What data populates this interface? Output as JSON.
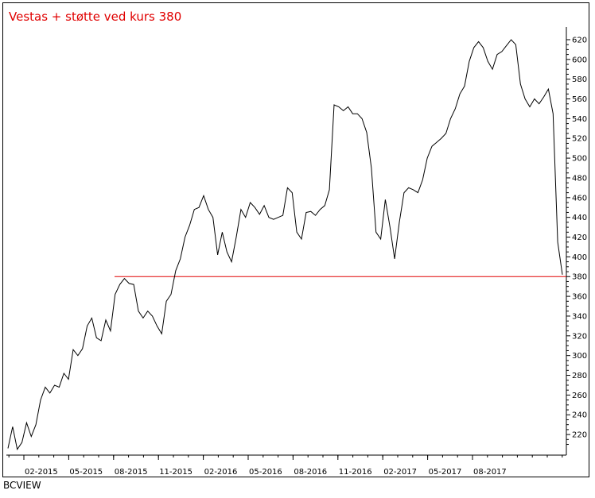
{
  "chart_data": {
    "type": "line",
    "title": "Vestas + støtte ved kurs 380",
    "xlabel": "",
    "ylabel": "",
    "ylim": [
      200,
      628
    ],
    "yticks": [
      220,
      240,
      260,
      280,
      300,
      320,
      340,
      360,
      380,
      400,
      420,
      440,
      460,
      480,
      500,
      520,
      540,
      560,
      580,
      600,
      620
    ],
    "xticks": [
      "02-2015",
      "05-2015",
      "08-2015",
      "11-2015",
      "02-2016",
      "05-2016",
      "08-2016",
      "11-2016",
      "02-2017",
      "05-2017",
      "08-2017"
    ],
    "grid": false,
    "support_level": 380,
    "series": [
      {
        "x_month_offset": [
          0.0,
          0.3,
          0.6,
          0.9,
          1.2,
          1.5,
          1.8,
          2.1,
          2.4,
          2.7,
          3.0,
          3.3,
          3.6,
          3.9,
          4.2,
          4.5,
          4.8,
          5.1,
          5.4,
          5.7,
          6.0,
          6.3,
          6.6,
          6.9,
          7.2,
          7.5,
          7.8,
          8.1,
          8.4,
          8.7,
          9.0,
          9.3,
          9.6,
          9.9,
          10.2,
          10.5,
          10.8,
          11.1,
          11.4,
          11.7,
          12.0,
          12.3,
          12.6,
          12.9,
          13.2,
          13.5,
          13.8,
          14.1,
          14.4,
          14.7,
          15.0,
          15.3,
          15.6,
          15.9,
          16.2,
          16.5,
          16.8,
          17.1,
          17.4,
          17.7,
          18.0,
          18.3,
          18.6,
          18.9,
          19.2,
          19.5,
          19.8,
          20.1,
          20.4,
          20.7,
          21.0,
          21.3,
          21.6,
          21.9,
          22.2,
          22.5,
          22.8,
          23.1,
          23.4,
          23.7,
          24.0,
          24.3,
          24.6,
          24.9,
          25.2,
          25.5,
          25.8,
          26.1,
          26.4,
          26.7,
          27.0,
          27.3,
          27.6,
          27.9,
          28.2,
          28.5,
          28.8,
          29.1,
          29.4,
          29.7,
          30.0,
          30.3,
          30.6,
          30.9,
          31.2,
          31.5,
          31.8,
          32.1,
          32.4,
          32.7,
          33.0,
          33.3,
          33.6,
          33.9,
          34.2,
          34.5,
          34.8,
          35.1,
          35.4,
          35.7
        ],
        "values": [
          206,
          228,
          205,
          212,
          232,
          218,
          230,
          255,
          268,
          262,
          270,
          268,
          282,
          276,
          306,
          300,
          307,
          330,
          338,
          318,
          315,
          336,
          325,
          362,
          372,
          378,
          373,
          372,
          345,
          338,
          345,
          340,
          330,
          322,
          355,
          362,
          386,
          398,
          420,
          432,
          448,
          450,
          462,
          448,
          440,
          402,
          425,
          405,
          395,
          420,
          448,
          440,
          455,
          450,
          443,
          452,
          440,
          438,
          440,
          442,
          470,
          465,
          425,
          418,
          445,
          446,
          442,
          448,
          452,
          468,
          554,
          552,
          548,
          552,
          545,
          545,
          540,
          526,
          490,
          425,
          418,
          458,
          430,
          398,
          435,
          465,
          470,
          468,
          465,
          478,
          500,
          512,
          516,
          520,
          525,
          540,
          550,
          565,
          573,
          598,
          612,
          618,
          612,
          598,
          590,
          605,
          608,
          614,
          620,
          615,
          575,
          560,
          552,
          560,
          555,
          562,
          570,
          545,
          415,
          382
        ]
      }
    ]
  },
  "source_label": "BCVIEW",
  "colors": {
    "title": "#e00000",
    "support_line": "#e00000",
    "price_line": "#000000",
    "frame": "#000000"
  }
}
